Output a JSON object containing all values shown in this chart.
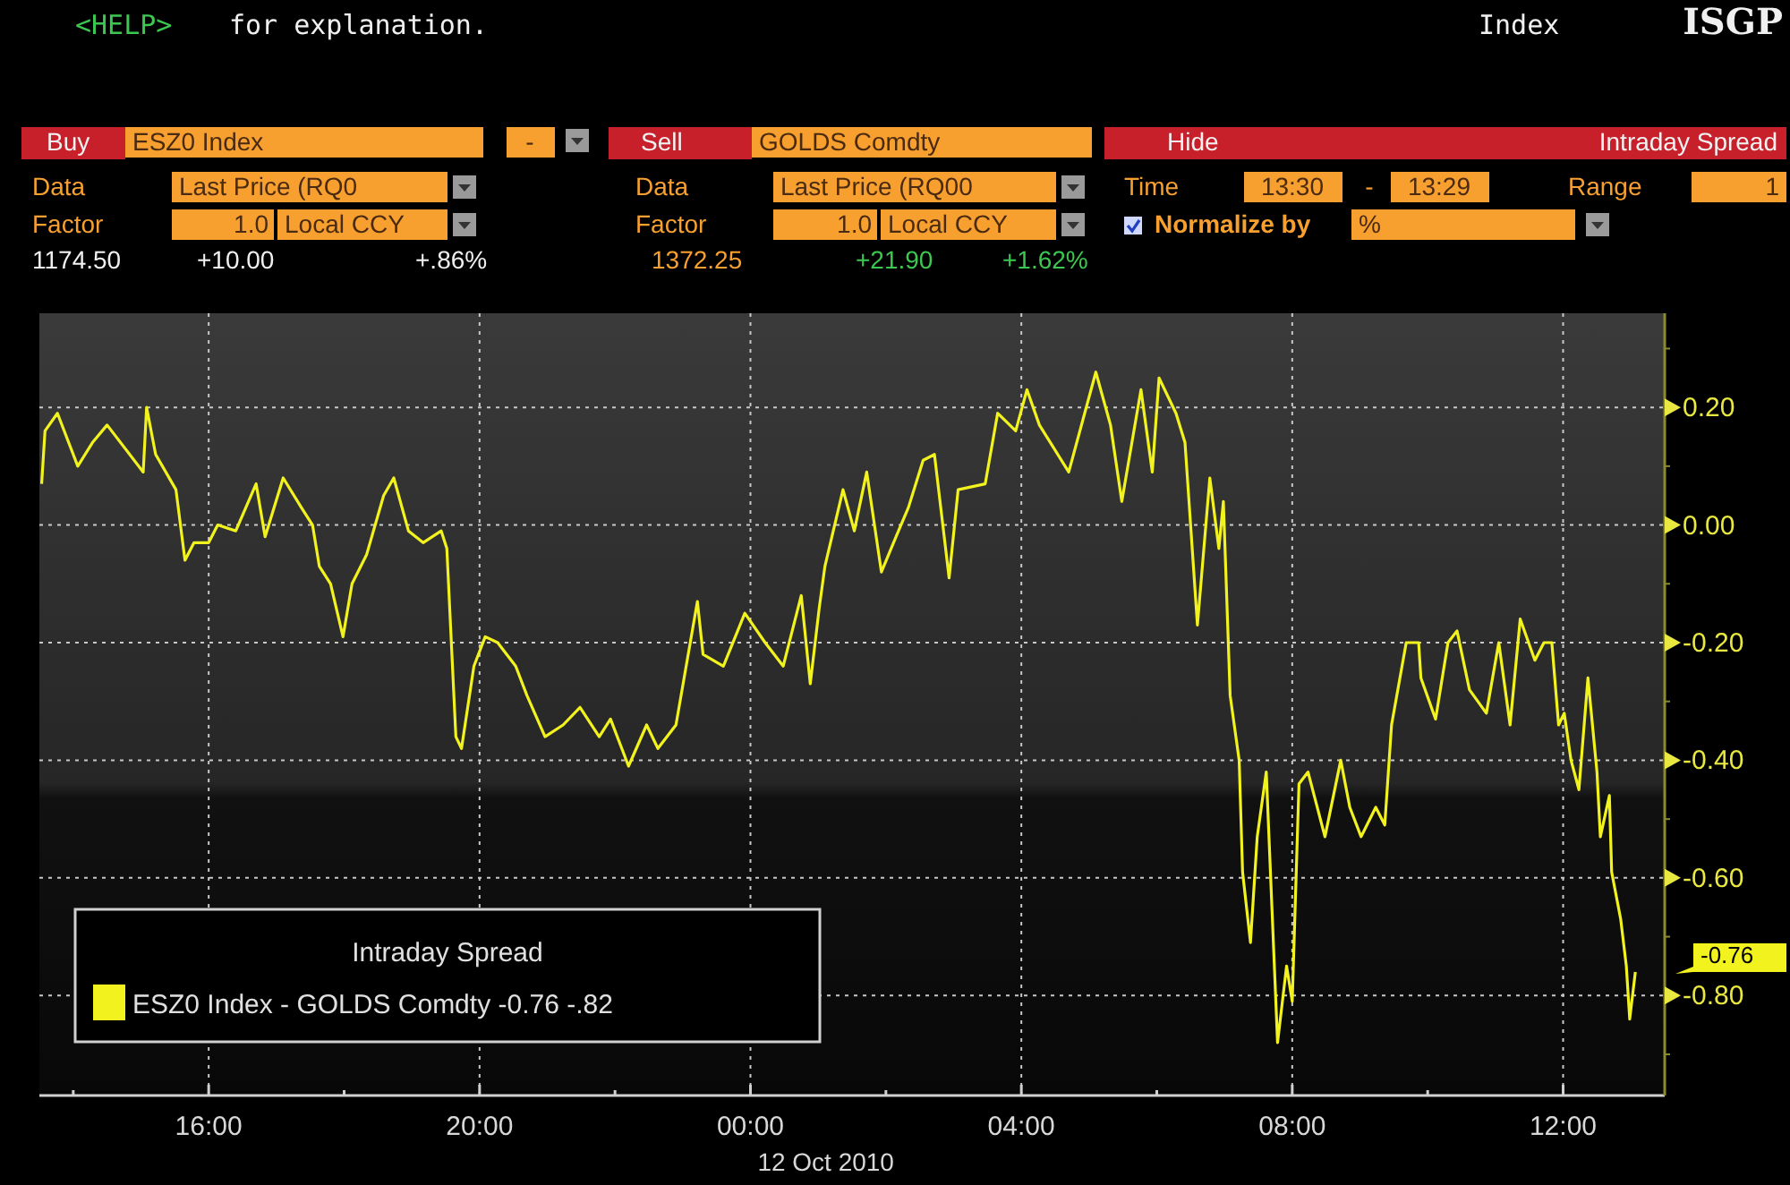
{
  "chart_data": {
    "type": "line",
    "legend_title": "Intraday Spread",
    "x": [
      "2010-10-11T13:32",
      "2010-10-11T13:35",
      "2010-10-11T13:46",
      "2010-10-11T14:04",
      "2010-10-11T14:17",
      "2010-10-11T14:30",
      "2010-10-11T15:02",
      "2010-10-11T15:05",
      "2010-10-11T15:13",
      "2010-10-11T15:31",
      "2010-10-11T15:39",
      "2010-10-11T15:47",
      "2010-10-11T16:00",
      "2010-10-11T16:08",
      "2010-10-11T16:24",
      "2010-10-11T16:42",
      "2010-10-11T16:50",
      "2010-10-11T17:06",
      "2010-10-11T17:22",
      "2010-10-11T17:32",
      "2010-10-11T17:38",
      "2010-10-11T17:48",
      "2010-10-11T17:59",
      "2010-10-11T18:07",
      "2010-10-11T18:20",
      "2010-10-11T18:35",
      "2010-10-11T18:44",
      "2010-10-11T18:57",
      "2010-10-11T19:10",
      "2010-10-11T19:26",
      "2010-10-11T19:31",
      "2010-10-11T19:39",
      "2010-10-11T19:44",
      "2010-10-11T19:55",
      "2010-10-11T20:05",
      "2010-10-11T20:16",
      "2010-10-11T20:32",
      "2010-10-11T20:42",
      "2010-10-11T20:58",
      "2010-10-11T21:14",
      "2010-10-11T21:29",
      "2010-10-11T21:46",
      "2010-10-11T21:56",
      "2010-10-11T22:12",
      "2010-10-11T22:28",
      "2010-10-11T22:38",
      "2010-10-11T22:54",
      "2010-10-11T23:13",
      "2010-10-11T23:18",
      "2010-10-11T23:36",
      "2010-10-11T23:55",
      "2010-10-12T00:13",
      "2010-10-12T00:29",
      "2010-10-12T00:45",
      "2010-10-12T00:53",
      "2010-10-12T01:01",
      "2010-10-12T01:06",
      "2010-10-12T01:22",
      "2010-10-12T01:32",
      "2010-10-12T01:43",
      "2010-10-12T01:56",
      "2010-10-12T02:09",
      "2010-10-12T02:20",
      "2010-10-12T02:33",
      "2010-10-12T02:43",
      "2010-10-12T02:56",
      "2010-10-12T03:04",
      "2010-10-12T03:28",
      "2010-10-12T03:39",
      "2010-10-12T03:55",
      "2010-10-12T04:05",
      "2010-10-12T04:16",
      "2010-10-12T04:42",
      "2010-10-12T05:06",
      "2010-10-12T05:19",
      "2010-10-12T05:29",
      "2010-10-12T05:46",
      "2010-10-12T05:56",
      "2010-10-12T06:02",
      "2010-10-12T06:17",
      "2010-10-12T06:25",
      "2010-10-12T06:36",
      "2010-10-12T06:47",
      "2010-10-12T06:55",
      "2010-10-12T06:59",
      "2010-10-12T07:05",
      "2010-10-12T07:13",
      "2010-10-12T07:16",
      "2010-10-12T07:23",
      "2010-10-12T07:29",
      "2010-10-12T07:37",
      "2010-10-12T07:47",
      "2010-10-12T07:55",
      "2010-10-12T08:00",
      "2010-10-12T08:06",
      "2010-10-12T08:14",
      "2010-10-12T08:29",
      "2010-10-12T08:43",
      "2010-10-12T08:51",
      "2010-10-12T09:01",
      "2010-10-12T09:14",
      "2010-10-12T09:22",
      "2010-10-12T09:28",
      "2010-10-12T09:41",
      "2010-10-12T09:52",
      "2010-10-12T09:54",
      "2010-10-12T10:07",
      "2010-10-12T10:18",
      "2010-10-12T10:26",
      "2010-10-12T10:37",
      "2010-10-12T10:52",
      "2010-10-12T11:03",
      "2010-10-12T11:13",
      "2010-10-12T11:22",
      "2010-10-12T11:35",
      "2010-10-12T11:43",
      "2010-10-12T11:50",
      "2010-10-12T11:56",
      "2010-10-12T12:01",
      "2010-10-12T12:07",
      "2010-10-12T12:14",
      "2010-10-12T12:22",
      "2010-10-12T12:30",
      "2010-10-12T12:33",
      "2010-10-12T12:41",
      "2010-10-12T12:43",
      "2010-10-12T12:51",
      "2010-10-12T12:56",
      "2010-10-12T12:59",
      "2010-10-12T13:04"
    ],
    "series": [
      {
        "name": "ESZ0 Index - GOLDS Comdty -0.76  -.82",
        "color": "#f2f21e",
        "values": [
          0.07,
          0.16,
          0.19,
          0.1,
          0.14,
          0.17,
          0.09,
          0.2,
          0.12,
          0.06,
          -0.06,
          -0.03,
          -0.03,
          0.0,
          -0.01,
          0.07,
          -0.02,
          0.08,
          0.03,
          0.0,
          -0.07,
          -0.1,
          -0.19,
          -0.1,
          -0.05,
          0.05,
          0.08,
          -0.01,
          -0.03,
          -0.01,
          -0.04,
          -0.36,
          -0.38,
          -0.24,
          -0.19,
          -0.2,
          -0.24,
          -0.29,
          -0.36,
          -0.34,
          -0.31,
          -0.36,
          -0.33,
          -0.41,
          -0.34,
          -0.38,
          -0.34,
          -0.13,
          -0.22,
          -0.24,
          -0.15,
          -0.2,
          -0.24,
          -0.12,
          -0.27,
          -0.14,
          -0.07,
          0.06,
          -0.01,
          0.09,
          -0.08,
          -0.02,
          0.03,
          0.11,
          0.12,
          -0.09,
          0.06,
          0.07,
          0.19,
          0.16,
          0.23,
          0.17,
          0.09,
          0.26,
          0.17,
          0.04,
          0.23,
          0.09,
          0.25,
          0.19,
          0.14,
          -0.17,
          0.08,
          -0.04,
          0.04,
          -0.29,
          -0.4,
          -0.59,
          -0.71,
          -0.53,
          -0.42,
          -0.88,
          -0.75,
          -0.81,
          -0.44,
          -0.42,
          -0.53,
          -0.4,
          -0.48,
          -0.53,
          -0.48,
          -0.51,
          -0.34,
          -0.2,
          -0.2,
          -0.26,
          -0.33,
          -0.2,
          -0.18,
          -0.28,
          -0.32,
          -0.2,
          -0.34,
          -0.16,
          -0.23,
          -0.2,
          -0.2,
          -0.34,
          -0.32,
          -0.4,
          -0.45,
          -0.26,
          -0.42,
          -0.53,
          -0.46,
          -0.59,
          -0.67,
          -0.75,
          -0.84,
          -0.76
        ]
      }
    ],
    "xlim": [
      "2010-10-11T13:30",
      "2010-10-12T13:30"
    ],
    "xticks": [
      {
        "value": "2010-10-11T14:00",
        "label": null
      },
      {
        "value": "2010-10-11T16:00",
        "label": "16:00"
      },
      {
        "value": "2010-10-11T18:00",
        "label": null
      },
      {
        "value": "2010-10-11T20:00",
        "label": "20:00"
      },
      {
        "value": "2010-10-11T22:00",
        "label": null
      },
      {
        "value": "2010-10-12T00:00",
        "label": "00:00"
      },
      {
        "value": "2010-10-12T02:00",
        "label": null
      },
      {
        "value": "2010-10-12T04:00",
        "label": "04:00"
      },
      {
        "value": "2010-10-12T06:00",
        "label": null
      },
      {
        "value": "2010-10-12T08:00",
        "label": "08:00"
      },
      {
        "value": "2010-10-12T10:00",
        "label": null
      },
      {
        "value": "2010-10-12T12:00",
        "label": "12:00"
      }
    ],
    "ylim": [
      -0.97,
      0.36
    ],
    "yticks": [
      {
        "value": -0.9,
        "label": null
      },
      {
        "value": -0.8,
        "label": "-0.80"
      },
      {
        "value": -0.7,
        "label": null
      },
      {
        "value": -0.6,
        "label": "-0.60"
      },
      {
        "value": -0.5,
        "label": null
      },
      {
        "value": -0.4,
        "label": "-0.40"
      },
      {
        "value": -0.3,
        "label": null
      },
      {
        "value": -0.2,
        "label": "-0.20"
      },
      {
        "value": -0.1,
        "label": null
      },
      {
        "value": 0,
        "label": "0.00"
      },
      {
        "value": 0.1,
        "label": null
      },
      {
        "value": 0.2,
        "label": "0.20"
      },
      {
        "value": 0.3,
        "label": null
      }
    ],
    "grid": true,
    "legend": "bottom left",
    "annotations": [
      "<HELP>",
      "for explanation.",
      "Index",
      "ISGP",
      "Buy",
      "ESZ0 Index",
      "-",
      "Sell",
      "GOLDS Comdty",
      "Hide",
      "Intraday Spread",
      "Data",
      "Last Price (RQ0",
      "Data",
      "Last Price (RQ00",
      "Time",
      "13:30",
      "-",
      "13:29",
      "Range",
      "1",
      "Factor",
      "1.0",
      "Local CCY",
      "Factor",
      "1.0",
      "Local CCY",
      "Normalize by",
      "%",
      "1174.50",
      "+10.00",
      "+.86%",
      "1372.25",
      "+21.90",
      "+1.62%",
      "12 Oct 2010",
      "-0.76"
    ]
  }
}
